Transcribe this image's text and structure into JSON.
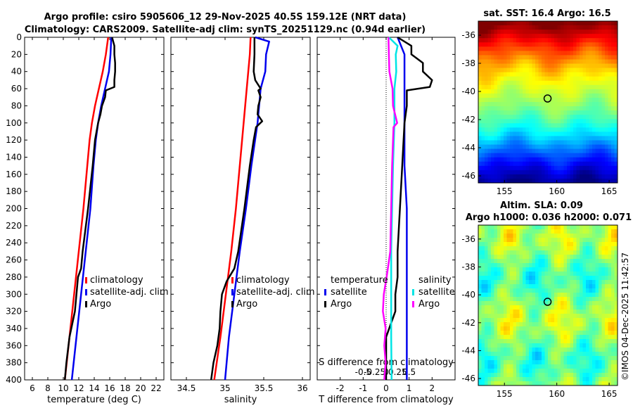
{
  "header": {
    "line1": "Argo profile: csiro 5905606_12 29-Nov-2025 40.5S 159.12E (NRT data)",
    "line2": "Climatology: CARS2009. Satellite-adj clim: synTS_20251129.nc (0.94d earlier)"
  },
  "credit": "©IMOS 04-Dec-2025 11:42:57",
  "chart_data": [
    {
      "type": "line",
      "id": "temperature",
      "xlabel": "temperature (deg C)",
      "ylabel": "",
      "xlim": [
        5,
        23
      ],
      "ylim": [
        400,
        0
      ],
      "xticks": [
        6,
        8,
        10,
        12,
        14,
        16,
        18,
        20,
        22
      ],
      "yticks": [
        0,
        20,
        40,
        60,
        80,
        100,
        120,
        140,
        160,
        180,
        200,
        220,
        240,
        260,
        280,
        300,
        320,
        340,
        360,
        380,
        400
      ],
      "legend": [
        "climatology",
        "satellite-adj. clim",
        "Argo"
      ],
      "series": [
        {
          "name": "climatology",
          "color": "#ff0000",
          "depth": [
            0,
            20,
            40,
            60,
            80,
            100,
            120,
            150,
            200,
            250,
            300,
            350,
            400
          ],
          "values": [
            15.8,
            15.5,
            15.1,
            14.6,
            14.1,
            13.7,
            13.4,
            13.1,
            12.6,
            12.0,
            11.4,
            10.8,
            10.2
          ]
        },
        {
          "name": "satellite-adj. clim",
          "color": "#0000ee",
          "depth": [
            0,
            20,
            40,
            60,
            80,
            100,
            120,
            150,
            200,
            250,
            300,
            350,
            400
          ],
          "values": [
            16.2,
            16.1,
            15.9,
            15.4,
            14.9,
            14.5,
            14.2,
            13.9,
            13.5,
            12.9,
            12.3,
            11.7,
            11.1
          ]
        },
        {
          "name": "Argo",
          "color": "#000000",
          "depth": [
            0,
            10,
            20,
            30,
            40,
            50,
            58,
            62,
            70,
            80,
            90,
            100,
            110,
            120,
            150,
            200,
            250,
            270,
            280,
            300,
            320,
            350,
            380,
            400
          ],
          "values": [
            16.3,
            16.6,
            16.6,
            16.7,
            16.7,
            16.6,
            16.6,
            15.5,
            15.4,
            15.0,
            14.8,
            14.5,
            14.3,
            14.1,
            13.8,
            13.2,
            12.5,
            12.3,
            11.9,
            11.7,
            11.5,
            10.8,
            10.4,
            10.2
          ]
        }
      ]
    },
    {
      "type": "line",
      "id": "salinity",
      "xlabel": "salinity",
      "xlim": [
        34.3,
        36.1
      ],
      "ylim": [
        400,
        0
      ],
      "xticks": [
        34.5,
        35,
        35.5,
        36
      ],
      "xtick_labels": [
        "34.5",
        "35",
        "35.5",
        "36"
      ],
      "legend": [
        "climatology",
        "satellite-adj. clim",
        "Argo"
      ],
      "series": [
        {
          "name": "climatology",
          "color": "#ff0000",
          "depth": [
            0,
            20,
            40,
            60,
            80,
            100,
            150,
            200,
            250,
            300,
            350,
            400
          ],
          "values": [
            35.33,
            35.32,
            35.3,
            35.28,
            35.26,
            35.24,
            35.19,
            35.14,
            35.08,
            35.01,
            34.94,
            34.86
          ]
        },
        {
          "name": "satellite-adj. clim",
          "color": "#0000ee",
          "depth": [
            0,
            5,
            20,
            40,
            60,
            80,
            100,
            150,
            200,
            250,
            300,
            350,
            400
          ],
          "values": [
            35.39,
            35.57,
            35.53,
            35.52,
            35.46,
            35.44,
            35.42,
            35.34,
            35.27,
            35.19,
            35.12,
            35.05,
            35.0
          ]
        },
        {
          "name": "Argo",
          "color": "#000000",
          "depth": [
            0,
            20,
            40,
            50,
            60,
            62,
            70,
            80,
            90,
            98,
            105,
            120,
            150,
            200,
            250,
            270,
            285,
            300,
            320,
            340,
            360,
            380,
            400
          ],
          "values": [
            35.38,
            35.38,
            35.37,
            35.39,
            35.46,
            35.43,
            35.46,
            35.43,
            35.42,
            35.48,
            35.4,
            35.37,
            35.32,
            35.25,
            35.17,
            35.12,
            35.02,
            34.96,
            34.94,
            34.93,
            34.9,
            34.85,
            34.82
          ]
        }
      ]
    },
    {
      "type": "line",
      "id": "difference",
      "xlabel": "T difference from climatology",
      "xlabel_top": "S difference from climatology",
      "xlim": [
        -3,
        3
      ],
      "ylim": [
        400,
        0
      ],
      "xticks": [
        -2,
        -1,
        0,
        1,
        2
      ],
      "xtick_labels": [
        "-2",
        "-1",
        "0",
        "1",
        "2"
      ],
      "s_ticks": [
        -0.5,
        -0.25,
        0,
        0.25,
        0.5
      ],
      "s_tick_labels": [
        "-0.5",
        "-0.25",
        "0",
        "0.25",
        "0.5"
      ],
      "legend_t": {
        "title": "temperature",
        "items": [
          "satellite",
          "Argo"
        ]
      },
      "legend_s": {
        "title": "salinity",
        "items": [
          "satellite",
          "Argo"
        ]
      },
      "series": [
        {
          "name": "temperature satellite",
          "color": "#0000ee",
          "depth": [
            0,
            20,
            40,
            60,
            80,
            100,
            150,
            200,
            250,
            300,
            350,
            400
          ],
          "values": [
            0.5,
            0.8,
            0.8,
            0.8,
            0.8,
            0.8,
            0.8,
            0.9,
            0.9,
            0.9,
            0.9,
            0.9
          ]
        },
        {
          "name": "temperature Argo",
          "color": "#000000",
          "depth": [
            0,
            10,
            20,
            30,
            40,
            50,
            58,
            62,
            70,
            80,
            100,
            150,
            200,
            250,
            280,
            300,
            320,
            350,
            400
          ],
          "values": [
            0.5,
            1.1,
            1.1,
            1.6,
            1.6,
            2.0,
            1.9,
            0.9,
            0.9,
            0.9,
            0.8,
            0.7,
            0.6,
            0.5,
            0.5,
            0.4,
            0.4,
            0.0,
            0.0
          ]
        },
        {
          "name": "salinity satellite",
          "color": "#00e5e5",
          "depth": [
            0,
            10,
            20,
            40,
            60,
            80,
            100,
            150,
            200,
            250,
            300,
            350,
            400
          ],
          "values": [
            0.06,
            0.25,
            0.21,
            0.22,
            0.18,
            0.18,
            0.18,
            0.15,
            0.13,
            0.11,
            0.11,
            0.11,
            0.12
          ]
        },
        {
          "name": "salinity Argo",
          "color": "#ff00ff",
          "depth": [
            0,
            20,
            40,
            60,
            80,
            100,
            105,
            150,
            200,
            250,
            280,
            300,
            320,
            340,
            360,
            380,
            400
          ],
          "values": [
            0.05,
            0.06,
            0.07,
            0.14,
            0.15,
            0.24,
            0.16,
            0.13,
            0.11,
            0.09,
            0.01,
            -0.05,
            -0.07,
            -0.01,
            -0.04,
            -0.01,
            -0.04
          ]
        }
      ]
    },
    {
      "type": "heatmap",
      "id": "sst-map",
      "title": "sat. SST: 16.4 Argo: 16.5",
      "xlim": [
        152.5,
        165.8
      ],
      "ylim": [
        -46.5,
        -35
      ],
      "xticks": [
        155,
        160,
        165
      ],
      "yticks": [
        -36,
        -38,
        -40,
        -42,
        -44,
        -46
      ],
      "marker": {
        "lon": 159.12,
        "lat": -40.5
      }
    },
    {
      "type": "heatmap",
      "id": "sla-map",
      "title_line1": "Altim. SLA: 0.09",
      "title_line2": "Argo h1000: 0.036 h2000: 0.071",
      "xlim": [
        152.5,
        165.8
      ],
      "ylim": [
        -46.5,
        -35
      ],
      "xticks": [
        155,
        160,
        165
      ],
      "yticks": [
        -36,
        -38,
        -40,
        -42,
        -44,
        -46
      ],
      "marker": {
        "lon": 159.12,
        "lat": -40.5
      }
    }
  ]
}
